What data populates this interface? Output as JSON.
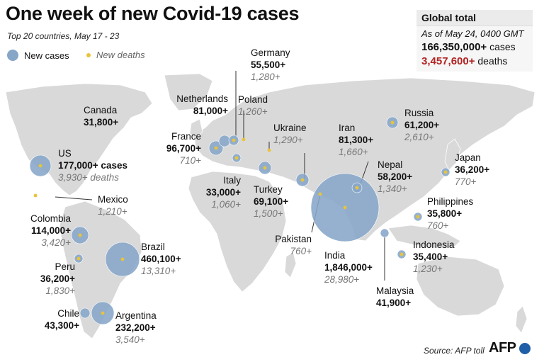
{
  "title": "One week of new Covid-19 cases",
  "subtitle": "Top 20 countries, May 17 - 23",
  "legend": {
    "cases_label": "New cases",
    "deaths_label": "New deaths"
  },
  "global": {
    "header": "Global total",
    "as_of": "As of May 24, 0400 GMT",
    "cases_value": "166,350,000+",
    "cases_word": "cases",
    "deaths_value": "3,457,600+",
    "deaths_word": "deaths"
  },
  "colors": {
    "bubble": "#86a6c8",
    "death_dot": "#e8c43a",
    "land": "#d9d9d9",
    "deaths_accent": "#b22222"
  },
  "countries": [
    {
      "name": "US",
      "cases": "177,000+ cases",
      "deaths": "3,930+ deaths"
    },
    {
      "name": "Canada",
      "cases": "31,800+",
      "deaths": ""
    },
    {
      "name": "Mexico",
      "cases": "",
      "deaths": "1,210+"
    },
    {
      "name": "Colombia",
      "cases": "114,000+",
      "deaths": "3,420+"
    },
    {
      "name": "Peru",
      "cases": "36,200+",
      "deaths": "1,830+"
    },
    {
      "name": "Brazil",
      "cases": "460,100+",
      "deaths": "13,310+"
    },
    {
      "name": "Chile",
      "cases": "43,300+",
      "deaths": ""
    },
    {
      "name": "Argentina",
      "cases": "232,200+",
      "deaths": "3,540+"
    },
    {
      "name": "France",
      "cases": "96,700+",
      "deaths": "710+"
    },
    {
      "name": "Netherlands",
      "cases": "81,000+",
      "deaths": ""
    },
    {
      "name": "Germany",
      "cases": "55,500+",
      "deaths": "1,280+"
    },
    {
      "name": "Poland",
      "cases": "",
      "deaths": "1,260+"
    },
    {
      "name": "Ukraine",
      "cases": "",
      "deaths": "1,290+"
    },
    {
      "name": "Italy",
      "cases": "33,000+",
      "deaths": "1,060+"
    },
    {
      "name": "Turkey",
      "cases": "69,100+",
      "deaths": "1,500+"
    },
    {
      "name": "Iran",
      "cases": "81,300+",
      "deaths": "1,660+"
    },
    {
      "name": "Russia",
      "cases": "61,200+",
      "deaths": "2,610+"
    },
    {
      "name": "Nepal",
      "cases": "58,200+",
      "deaths": "1,340+"
    },
    {
      "name": "Pakistan",
      "cases": "",
      "deaths": "760+"
    },
    {
      "name": "India",
      "cases": "1,846,000+",
      "deaths": "28,980+"
    },
    {
      "name": "Japan",
      "cases": "36,200+",
      "deaths": "770+"
    },
    {
      "name": "Philippines",
      "cases": "35,800+",
      "deaths": "760+"
    },
    {
      "name": "Indonesia",
      "cases": "35,400+",
      "deaths": "1,230+"
    },
    {
      "name": "Malaysia",
      "cases": "41,900+",
      "deaths": ""
    }
  ],
  "source": "Source: AFP toll",
  "logo": "AFP"
}
